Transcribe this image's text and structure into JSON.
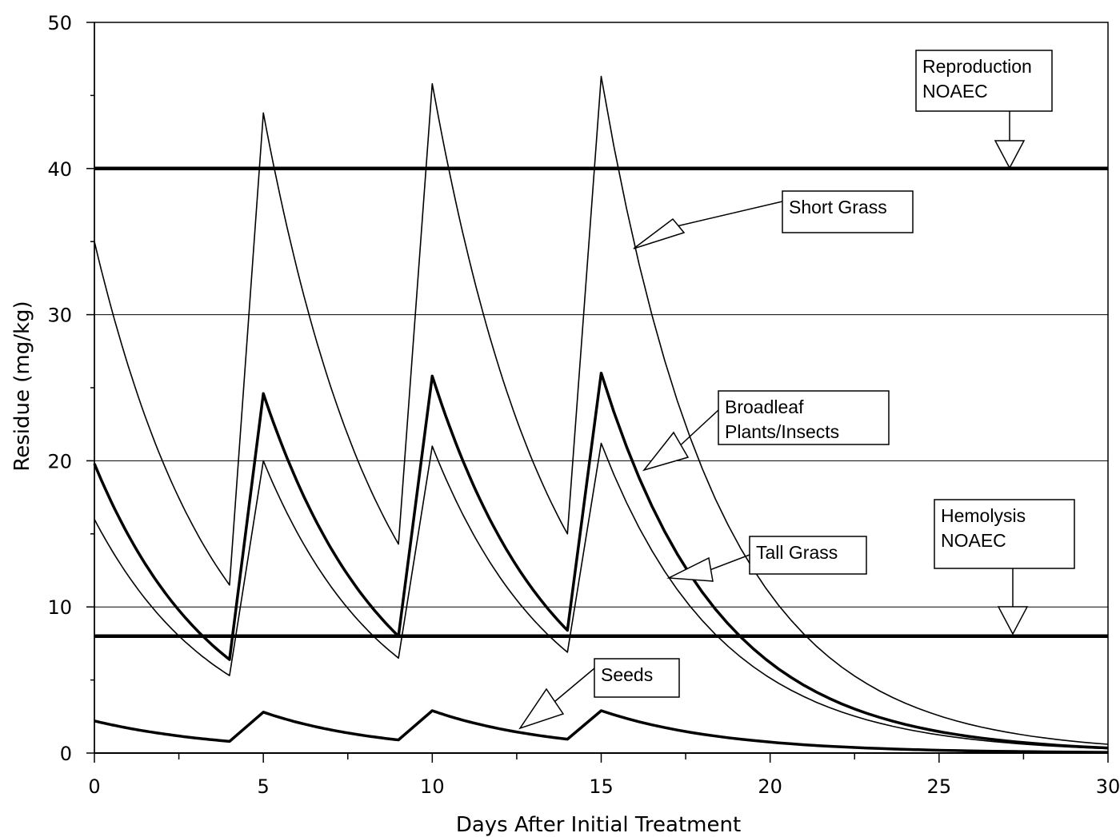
{
  "chart_data": {
    "type": "line",
    "xlabel": "Days After Initial Treatment",
    "ylabel": "Residue (mg/kg)",
    "xlim": [
      0,
      30
    ],
    "ylim": [
      0,
      50
    ],
    "xticks": [
      0,
      5,
      10,
      15,
      20,
      25,
      30
    ],
    "yticks": [
      0,
      10,
      20,
      30,
      40,
      50
    ],
    "grid": "horizontal",
    "legend": "none (callout labels)",
    "applications": [
      0,
      5,
      10,
      15
    ],
    "series": [
      {
        "name": "Short Grass",
        "peaks": [
          35.0,
          43.8,
          45.8,
          46.3
        ],
        "pre_reapp": [
          11.5,
          14.3,
          15.0
        ],
        "day30": 0.6,
        "weight": "thin"
      },
      {
        "name": "Broadleaf Plants/Insects",
        "peaks": [
          19.8,
          24.6,
          25.8,
          26.0
        ],
        "pre_reapp": [
          6.4,
          8.0,
          8.4
        ],
        "day30": 0.35,
        "weight": "thick"
      },
      {
        "name": "Tall Grass",
        "peaks": [
          16.0,
          20.0,
          21.0,
          21.2
        ],
        "pre_reapp": [
          5.3,
          6.5,
          6.9
        ],
        "day30": 0.3,
        "weight": "thin"
      },
      {
        "name": "Seeds",
        "peaks": [
          2.2,
          2.8,
          2.9,
          2.9
        ],
        "pre_reapp": [
          0.8,
          0.9,
          0.95
        ],
        "day30": 0.05,
        "weight": "thick"
      }
    ],
    "thresholds": [
      {
        "name": "Reproduction NOAEC",
        "value": 40
      },
      {
        "name": "Hemolysis NOAEC",
        "value": 8
      }
    ],
    "callouts": [
      {
        "lines": [
          "Reproduction",
          "NOAEC"
        ]
      },
      {
        "lines": [
          "Short Grass"
        ]
      },
      {
        "lines": [
          "Broadleaf",
          "Plants/Insects"
        ]
      },
      {
        "lines": [
          "Hemolysis",
          "NOAEC"
        ]
      },
      {
        "lines": [
          "Tall Grass"
        ]
      },
      {
        "lines": [
          "Seeds"
        ]
      }
    ]
  }
}
